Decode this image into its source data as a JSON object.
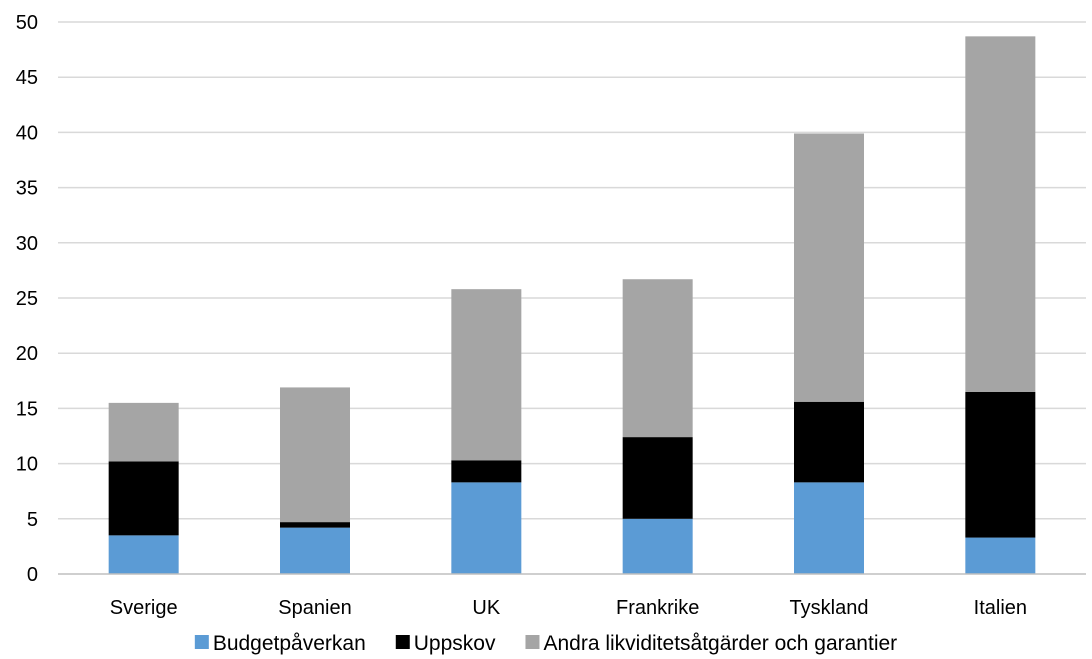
{
  "chart_data": {
    "type": "bar",
    "stacked": true,
    "title": "",
    "xlabel": "",
    "ylabel": "",
    "categories": [
      "Sverige",
      "Spanien",
      "UK",
      "Frankrike",
      "Tyskland",
      "Italien"
    ],
    "series": [
      {
        "name": "Budgetpåverkan",
        "color": "#5b9bd5",
        "values": [
          3.5,
          4.2,
          8.3,
          5.0,
          8.3,
          3.3
        ]
      },
      {
        "name": "Uppskov",
        "color": "#000000",
        "values": [
          6.7,
          0.5,
          2.0,
          7.4,
          7.3,
          13.2
        ]
      },
      {
        "name": "Andra likviditetsåtgärder och garantier",
        "color": "#a5a5a5",
        "values": [
          5.3,
          12.2,
          15.5,
          14.3,
          24.3,
          32.2
        ]
      }
    ],
    "ylim": [
      0,
      50
    ],
    "yticks": [
      0,
      5,
      10,
      15,
      20,
      25,
      30,
      35,
      40,
      45,
      50
    ],
    "grid": true,
    "legend_position": "bottom"
  }
}
